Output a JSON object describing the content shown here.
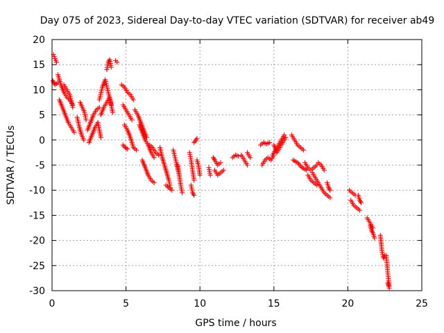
{
  "chart_data": {
    "type": "scatter",
    "title": "Day 075 of 2023, Sidereal Day-to-day VTEC variation (SDTVAR) for receiver ab49",
    "xlabel": "GPS time / hours",
    "ylabel": "SDTVAR / TECUs",
    "xlim": [
      0,
      25
    ],
    "ylim": [
      -30,
      20
    ],
    "xticks": [
      0,
      5,
      10,
      15,
      20,
      25
    ],
    "yticks": [
      -30,
      -25,
      -20,
      -15,
      -10,
      -5,
      0,
      5,
      10,
      15,
      20
    ],
    "xtick_labels": [
      "0",
      "5",
      "10",
      "15",
      "20",
      "25"
    ],
    "ytick_labels": [
      "-30",
      "-25",
      "-20",
      "-15",
      "-10",
      "-5",
      "0",
      "5",
      "10",
      "15",
      "20"
    ],
    "grid": true,
    "marker": "+",
    "color": "#ff0000",
    "series": [
      {
        "name": "SDTVAR",
        "segments": [
          {
            "x": [
              0.1,
              0.2,
              0.3
            ],
            "y": [
              17.0,
              16.2,
              15.5
            ]
          },
          {
            "x": [
              0.05,
              0.2,
              0.4
            ],
            "y": [
              11.8,
              11.0,
              11.4
            ]
          },
          {
            "x": [
              0.4,
              0.6,
              0.8,
              1.0,
              1.2,
              1.4
            ],
            "y": [
              13.0,
              11.0,
              9.5,
              8.5,
              8.0,
              7.0
            ]
          },
          {
            "x": [
              0.5,
              0.7,
              0.9,
              1.1,
              1.3,
              1.5
            ],
            "y": [
              8.0,
              6.5,
              5.0,
              3.5,
              2.5,
              1.5
            ]
          },
          {
            "x": [
              0.8,
              1.0,
              1.2,
              1.4
            ],
            "y": [
              11.0,
              10.0,
              9.0,
              6.5
            ]
          },
          {
            "x": [
              1.7,
              1.85,
              2.0,
              2.15
            ],
            "y": [
              4.5,
              2.5,
              1.0,
              0.0
            ]
          },
          {
            "x": [
              1.9,
              2.05,
              2.2,
              2.3
            ],
            "y": [
              7.5,
              6.5,
              5.5,
              4.0
            ]
          },
          {
            "x": [
              2.4,
              2.6,
              2.8,
              3.0,
              3.2
            ],
            "y": [
              2.0,
              3.5,
              5.0,
              6.0,
              6.5
            ]
          },
          {
            "x": [
              2.5,
              2.7,
              2.9,
              3.1,
              3.3
            ],
            "y": [
              -0.5,
              1.0,
              2.5,
              3.5,
              0.5
            ]
          },
          {
            "x": [
              3.2,
              3.4,
              3.6,
              3.8,
              4.0
            ],
            "y": [
              8.0,
              10.5,
              12.0,
              9.5,
              7.0
            ]
          },
          {
            "x": [
              3.7,
              3.8,
              3.9,
              4.0
            ],
            "y": [
              14.0,
              15.5,
              16.0,
              14.5
            ]
          },
          {
            "x": [
              3.3,
              3.5,
              3.7,
              3.9,
              4.1
            ],
            "y": [
              5.0,
              6.5,
              7.5,
              8.5,
              5.5
            ]
          },
          {
            "x": [
              4.3,
              4.4
            ],
            "y": [
              15.8,
              15.5
            ]
          },
          {
            "x": [
              4.7,
              4.9,
              5.1,
              5.3,
              5.5
            ],
            "y": [
              11.0,
              10.5,
              9.5,
              9.0,
              8.0
            ]
          },
          {
            "x": [
              4.8,
              5.0,
              5.2,
              5.4
            ],
            "y": [
              7.0,
              6.0,
              5.0,
              4.0
            ]
          },
          {
            "x": [
              4.9,
              5.1,
              5.3,
              5.5,
              5.7
            ],
            "y": [
              3.0,
              2.0,
              0.5,
              -1.5,
              -2.0
            ]
          },
          {
            "x": [
              4.8,
              4.95,
              5.1
            ],
            "y": [
              -1.0,
              -1.5,
              -1.8
            ]
          },
          {
            "x": [
              5.6,
              5.8,
              6.0,
              6.2,
              6.4
            ],
            "y": [
              6.0,
              5.0,
              3.5,
              2.0,
              0.5
            ]
          },
          {
            "x": [
              5.9,
              6.1,
              6.3,
              6.5,
              6.7,
              6.9
            ],
            "y": [
              3.0,
              1.5,
              0.0,
              -1.0,
              -2.5,
              -3.5
            ]
          },
          {
            "x": [
              6.1,
              6.3,
              6.5,
              6.7,
              6.9
            ],
            "y": [
              -4.0,
              -5.5,
              -7.0,
              -8.0,
              -8.5
            ]
          },
          {
            "x": [
              6.6,
              6.8,
              7.0,
              7.2
            ],
            "y": [
              -1.0,
              -1.5,
              -2.5,
              -3.0
            ]
          },
          {
            "x": [
              7.3,
              7.45,
              7.6,
              7.75,
              7.9,
              8.0
            ],
            "y": [
              -1.5,
              -3.5,
              -5.0,
              -6.5,
              -8.0,
              -9.5
            ]
          },
          {
            "x": [
              7.7,
              7.9,
              8.1
            ],
            "y": [
              -9.0,
              -9.5,
              -10.0
            ]
          },
          {
            "x": [
              8.2,
              8.4,
              8.6
            ],
            "y": [
              -2.0,
              -4.5,
              -7.0
            ]
          },
          {
            "x": [
              8.5,
              8.6,
              8.7,
              8.8
            ],
            "y": [
              -5.0,
              -7.0,
              -9.0,
              -10.5
            ]
          },
          {
            "x": [
              9.3,
              9.4,
              9.5,
              9.6
            ],
            "y": [
              -2.5,
              -4.0,
              -6.0,
              -8.0
            ]
          },
          {
            "x": [
              9.4,
              9.5,
              9.6
            ],
            "y": [
              -9.0,
              -10.5,
              -11.0
            ]
          },
          {
            "x": [
              9.8,
              9.9,
              10.0
            ],
            "y": [
              -4.0,
              -5.0,
              -7.0
            ]
          },
          {
            "x": [
              9.6,
              9.8
            ],
            "y": [
              -0.5,
              0.3
            ]
          },
          {
            "x": [
              10.6,
              10.7
            ],
            "y": [
              -5.5,
              -7.0
            ]
          },
          {
            "x": [
              10.9,
              11.0,
              11.2,
              11.4
            ],
            "y": [
              -3.5,
              -4.0,
              -5.0,
              -4.5
            ]
          },
          {
            "x": [
              11.0,
              11.2,
              11.4,
              11.6
            ],
            "y": [
              -6.0,
              -7.0,
              -6.5,
              -6.0
            ]
          },
          {
            "x": [
              12.2,
              12.4,
              12.6
            ],
            "y": [
              -3.5,
              -3.0,
              -3.2
            ]
          },
          {
            "x": [
              12.8,
              13.0,
              13.2
            ],
            "y": [
              -3.0,
              -4.0,
              -5.0
            ]
          },
          {
            "x": [
              13.2,
              13.4
            ],
            "y": [
              -2.5,
              -3.5
            ]
          },
          {
            "x": [
              14.1,
              14.3,
              14.5,
              14.7
            ],
            "y": [
              -1.0,
              -0.5,
              -0.8,
              -0.5
            ]
          },
          {
            "x": [
              14.2,
              14.4,
              14.6,
              14.8,
              15.0
            ],
            "y": [
              -5.0,
              -4.0,
              -3.5,
              -4.0,
              -3.0
            ]
          },
          {
            "x": [
              14.9,
              15.1,
              15.3,
              15.5,
              15.7
            ],
            "y": [
              -3.0,
              -2.0,
              -1.0,
              0.0,
              1.0
            ]
          },
          {
            "x": [
              15.0,
              15.2,
              15.4,
              15.6,
              15.8
            ],
            "y": [
              -1.0,
              -2.5,
              -1.5,
              -0.5,
              0.5
            ]
          },
          {
            "x": [
              16.2,
              16.4,
              16.6,
              16.8,
              17.0
            ],
            "y": [
              1.0,
              0.0,
              -1.0,
              -1.5,
              -2.0
            ]
          },
          {
            "x": [
              16.3,
              16.6,
              16.9,
              17.2
            ],
            "y": [
              -4.0,
              -4.5,
              -5.5,
              -6.0
            ]
          },
          {
            "x": [
              17.1,
              17.3,
              17.5,
              17.7,
              17.9
            ],
            "y": [
              -4.5,
              -5.5,
              -6.0,
              -5.5,
              -5.0
            ]
          },
          {
            "x": [
              17.3,
              17.5,
              17.7,
              17.9
            ],
            "y": [
              -7.0,
              -8.0,
              -8.5,
              -9.0
            ]
          },
          {
            "x": [
              17.6,
              17.8,
              18.0,
              18.2
            ],
            "y": [
              -6.5,
              -7.5,
              -8.5,
              -9.5
            ]
          },
          {
            "x": [
              18.0,
              18.2,
              18.4
            ],
            "y": [
              -4.5,
              -5.0,
              -6.0
            ]
          },
          {
            "x": [
              18.2,
              18.4,
              18.6,
              18.8
            ],
            "y": [
              -9.5,
              -10.5,
              -11.0,
              -11.5
            ]
          },
          {
            "x": [
              18.6,
              18.7,
              18.8
            ],
            "y": [
              -8.5,
              -9.5,
              -10.0
            ]
          },
          {
            "x": [
              20.1,
              20.3,
              20.5
            ],
            "y": [
              -10.0,
              -10.5,
              -11.0
            ]
          },
          {
            "x": [
              20.2,
              20.4,
              20.6,
              20.8
            ],
            "y": [
              -12.0,
              -13.0,
              -13.5,
              -14.0
            ]
          },
          {
            "x": [
              20.7,
              20.8,
              20.9
            ],
            "y": [
              -11.0,
              -12.0,
              -12.5
            ]
          },
          {
            "x": [
              21.3,
              21.5,
              21.7
            ],
            "y": [
              -15.5,
              -16.5,
              -17.5
            ]
          },
          {
            "x": [
              21.5,
              21.6,
              21.7,
              21.8
            ],
            "y": [
              -17.0,
              -18.0,
              -18.5,
              -19.5
            ]
          },
          {
            "x": [
              22.2,
              22.3,
              22.4,
              22.5
            ],
            "y": [
              -19.0,
              -22.0,
              -23.5,
              -23.0
            ]
          },
          {
            "x": [
              22.6,
              22.7,
              22.8
            ],
            "y": [
              -23.0,
              -26.5,
              -29.0
            ]
          },
          {
            "x": [
              22.7,
              22.8
            ],
            "y": [
              -28.5,
              -29.5
            ]
          }
        ]
      }
    ]
  }
}
